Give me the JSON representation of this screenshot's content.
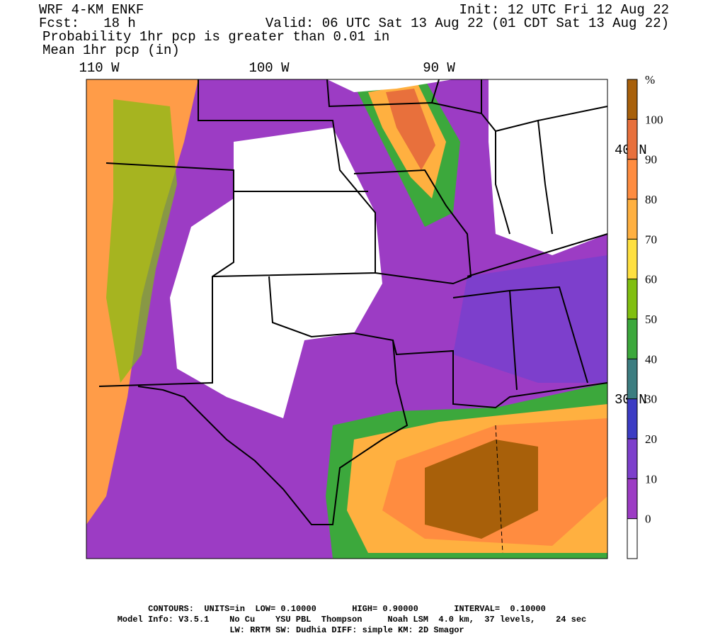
{
  "header": {
    "model": "WRF 4-KM ENKF",
    "forecast": "Fcst:   18 h",
    "init": "Init: 12 UTC Fri 12 Aug 22",
    "valid": "Valid: 06 UTC Sat 13 Aug 22 (01 CDT Sat 13 Aug 22)",
    "field1": "Probability 1hr pcp is greater than 0.01 in",
    "field2": "Mean 1hr pcp (in)"
  },
  "map": {
    "longitude_labels": [
      "110 W",
      "100 W",
      "90 W"
    ],
    "latitude_labels": [
      "40 N",
      "30 N"
    ]
  },
  "colorbar": {
    "unit": "%",
    "levels": [
      0,
      10,
      20,
      30,
      40,
      50,
      60,
      70,
      80,
      90,
      100
    ],
    "colors": [
      "#ffffff",
      "#9c3cc4",
      "#7d3fcc",
      "#3c3cc4",
      "#3c7d80",
      "#3ca83c",
      "#80bf10",
      "#ffe040",
      "#ffb040",
      "#ff8c40",
      "#e8703c",
      "#a8600a"
    ]
  },
  "footer": {
    "line1": "CONTOURS:  UNITS=in  LOW= 0.10000       HIGH= 0.90000       INTERVAL=  0.10000",
    "line2": "Model Info: V3.5.1    No Cu    YSU PBL  Thompson     Noah LSM  4.0 km,  37 levels,    24 sec",
    "line3": "LW: RRTM SW: Dudhia  DIFF: simple KM: 2D Smagor"
  }
}
